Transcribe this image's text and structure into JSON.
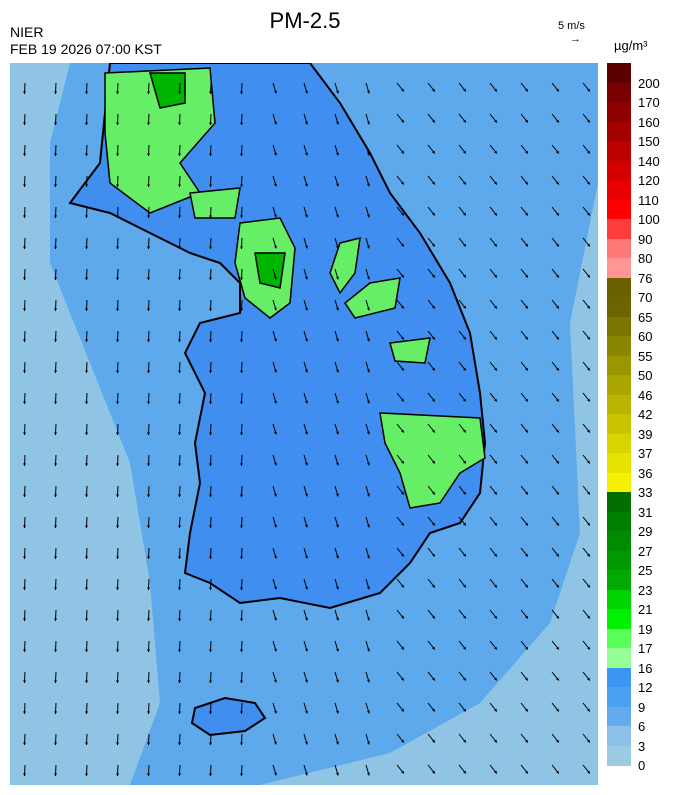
{
  "header": {
    "title": "PM-2.5",
    "agency": "NIER",
    "timestamp": "FEB 19 2026 07:00 KST"
  },
  "wind_reference": {
    "label": "5 m/s",
    "arrow": "→"
  },
  "colorbar": {
    "unit": "µg/m³",
    "labels": [
      "200",
      "170",
      "160",
      "150",
      "140",
      "120",
      "110",
      "100",
      "90",
      "80",
      "76",
      "70",
      "65",
      "60",
      "55",
      "50",
      "46",
      "42",
      "39",
      "37",
      "36",
      "33",
      "31",
      "29",
      "27",
      "25",
      "23",
      "21",
      "19",
      "17",
      "16",
      "12",
      "9",
      "6",
      "3",
      "0"
    ],
    "colors": [
      "#5c0000",
      "#780000",
      "#8c0000",
      "#a50000",
      "#bd0000",
      "#d40000",
      "#e80000",
      "#ff0000",
      "#ff3c3c",
      "#ff5a5a",
      "#ff7878",
      "#ff9696",
      "#6b6000",
      "#6b6400",
      "#7c7600",
      "#8a8600",
      "#9a9600",
      "#aaa600",
      "#b8b400",
      "#c8c400",
      "#d8d400",
      "#e6e200",
      "#f4f000",
      "#006e00",
      "#008000",
      "#008c00",
      "#009800",
      "#00aa00",
      "#00bc00",
      "#00d400",
      "#00f000",
      "#5aff5a",
      "#96ff96",
      "#3a96f0",
      "#4ca0f0",
      "#64aaec",
      "#8cc0e6",
      "#9ccae2"
    ]
  },
  "map": {
    "sea_color": "#8fc4e4",
    "near_sea_color": "#5ea9ec",
    "land_color": "#3f8ef0",
    "pollution_color": "#66ee66",
    "high_pollution_color": "#00b400"
  }
}
